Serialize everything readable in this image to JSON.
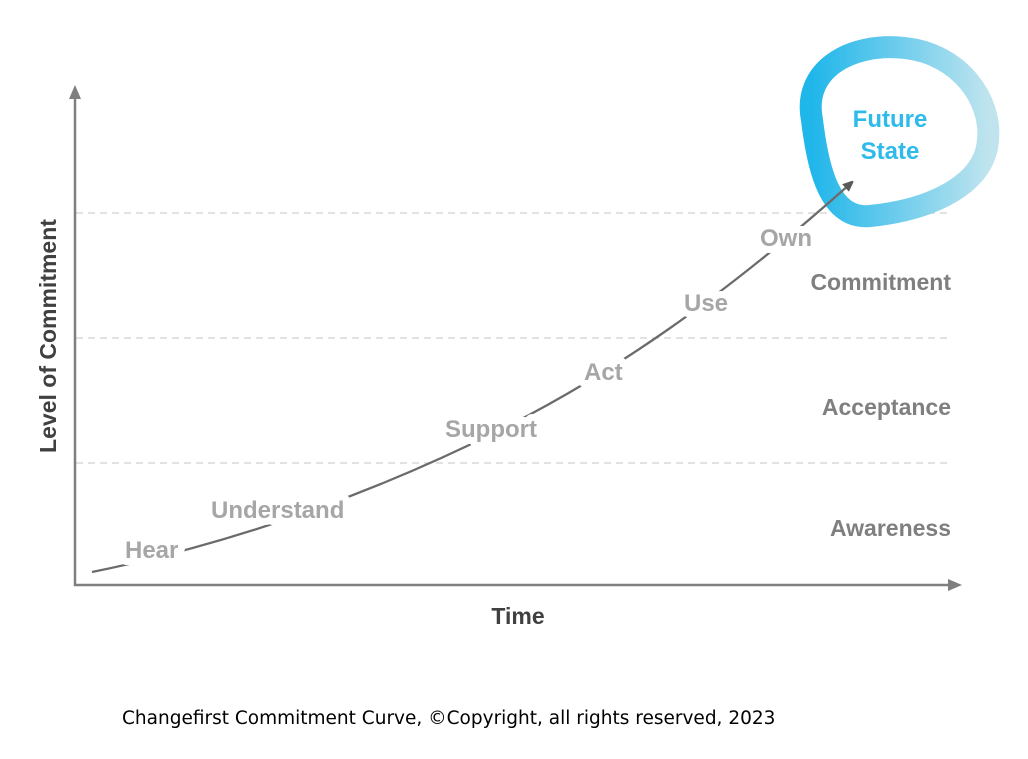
{
  "diagram": {
    "y_axis_label": "Level of Commitment",
    "x_axis_label": "Time",
    "zones": [
      "Commitment",
      "Acceptance",
      "Awareness"
    ],
    "stages": [
      "Hear",
      "Understand",
      "Support",
      "Act",
      "Use",
      "Own"
    ],
    "goal": {
      "line1": "Future",
      "line2": "State"
    },
    "colors": {
      "goal_ring_start": "#1fb6ea",
      "goal_ring_end": "#bfe4ee",
      "goal_text": "#2ebbec",
      "curve": "#6b6b6b",
      "stage_text": "#a6a6a6"
    }
  },
  "caption": "Changefirst Commitment Curve, ©Copyright, all rights reserved, 2023"
}
